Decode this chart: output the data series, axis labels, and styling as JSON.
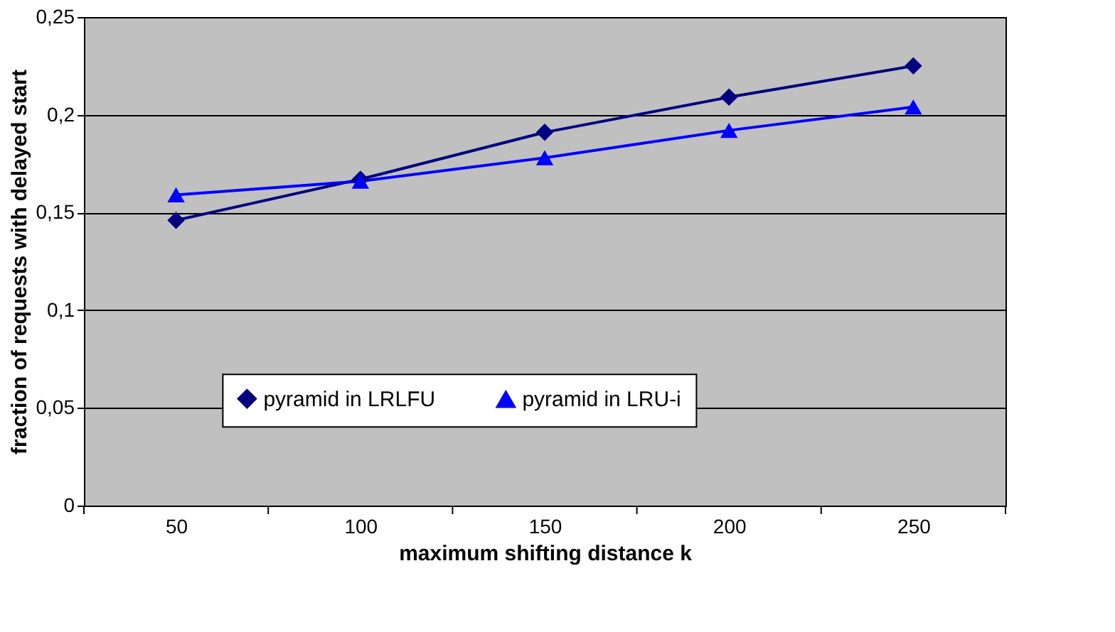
{
  "chart_data": {
    "type": "line",
    "xlabel": "maximum shifting distance k",
    "ylabel": "fraction of requests with delayed start",
    "categories": [
      "50",
      "100",
      "150",
      "200",
      "250"
    ],
    "series": [
      {
        "name": "pyramid in LRLFU",
        "color": "#000080",
        "marker": "diamond",
        "values": [
          0.146,
          0.167,
          0.191,
          0.209,
          0.225
        ]
      },
      {
        "name": "pyramid in LRU-i",
        "color": "#0000ff",
        "marker": "triangle",
        "values": [
          0.159,
          0.166,
          0.178,
          0.192,
          0.204
        ]
      }
    ],
    "ylim": [
      0,
      0.25
    ],
    "yticks": [
      {
        "value": 0,
        "label": "0"
      },
      {
        "value": 0.05,
        "label": "0,05"
      },
      {
        "value": 0.1,
        "label": "0,1"
      },
      {
        "value": 0.15,
        "label": "0,15"
      },
      {
        "value": 0.2,
        "label": "0,2"
      },
      {
        "value": 0.25,
        "label": "0,25"
      }
    ],
    "grid": "y",
    "legend": "bottom",
    "line_style": "solid"
  }
}
